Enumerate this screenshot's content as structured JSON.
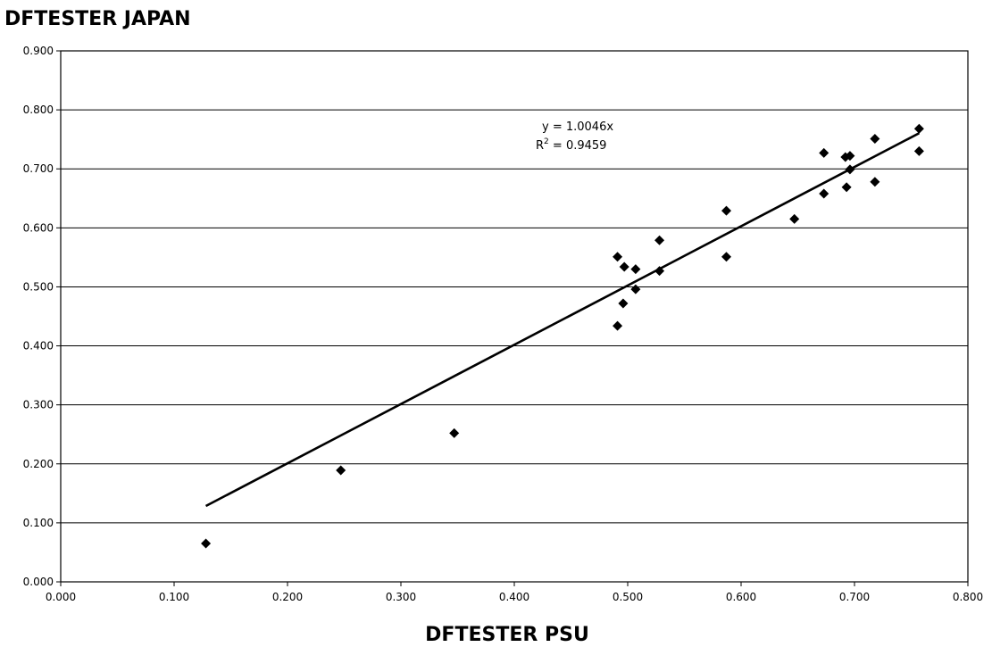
{
  "chart_data": {
    "type": "scatter",
    "title": "",
    "ylabel": "DFTESTER JAPAN",
    "xlabel": "DFTESTER PSU",
    "xlim": [
      0,
      0.8
    ],
    "ylim": [
      0,
      0.9
    ],
    "x_ticks": [
      "0.000",
      "0.100",
      "0.200",
      "0.300",
      "0.400",
      "0.500",
      "0.600",
      "0.700",
      "0.800"
    ],
    "y_ticks": [
      "0.000",
      "0.100",
      "0.200",
      "0.300",
      "0.400",
      "0.500",
      "0.600",
      "0.700",
      "0.800",
      "0.900"
    ],
    "grid": "horizontal",
    "marker": "diamond",
    "series": [
      {
        "color": "#000000",
        "points": [
          [
            0.128,
            0.065
          ],
          [
            0.247,
            0.189
          ],
          [
            0.347,
            0.252
          ],
          [
            0.491,
            0.434
          ],
          [
            0.491,
            0.551
          ],
          [
            0.496,
            0.472
          ],
          [
            0.497,
            0.534
          ],
          [
            0.507,
            0.53
          ],
          [
            0.507,
            0.496
          ],
          [
            0.528,
            0.579
          ],
          [
            0.528,
            0.527
          ],
          [
            0.587,
            0.629
          ],
          [
            0.587,
            0.551
          ],
          [
            0.647,
            0.615
          ],
          [
            0.673,
            0.727
          ],
          [
            0.673,
            0.658
          ],
          [
            0.692,
            0.72
          ],
          [
            0.693,
            0.669
          ],
          [
            0.696,
            0.722
          ],
          [
            0.696,
            0.699
          ],
          [
            0.718,
            0.751
          ],
          [
            0.718,
            0.678
          ],
          [
            0.757,
            0.768
          ],
          [
            0.757,
            0.73
          ]
        ]
      }
    ],
    "trendline": {
      "slope": 1.0046,
      "x_range": [
        0.128,
        0.757
      ],
      "equation": "y = 1.0046x",
      "r2_label": "R",
      "r2_superscript": "2",
      "r2_value": " = 0.9459"
    }
  }
}
